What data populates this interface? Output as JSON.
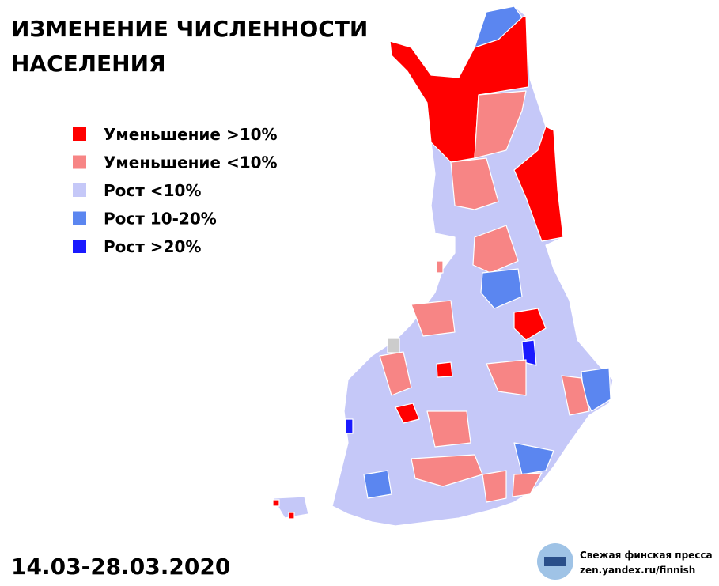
{
  "title": [
    "ИЗМЕНЕНИЕ ЧИСЛЕННОСТИ",
    "НАСЕЛЕНИЯ"
  ],
  "legend": [
    {
      "label": "Уменьшение >10%",
      "color": "#ff0000"
    },
    {
      "label": "Уменьшение <10%",
      "color": "#f78585"
    },
    {
      "label": "Рост <10%",
      "color": "#c5c8f8"
    },
    {
      "label": "Рост 10-20%",
      "color": "#5b86f0"
    },
    {
      "label": "Рост >20%",
      "color": "#1a1aff"
    }
  ],
  "date": "14.03-28.03.2020",
  "credit": [
    "Свежая финская пресса",
    "zen.yandex.ru/finnish"
  ]
}
